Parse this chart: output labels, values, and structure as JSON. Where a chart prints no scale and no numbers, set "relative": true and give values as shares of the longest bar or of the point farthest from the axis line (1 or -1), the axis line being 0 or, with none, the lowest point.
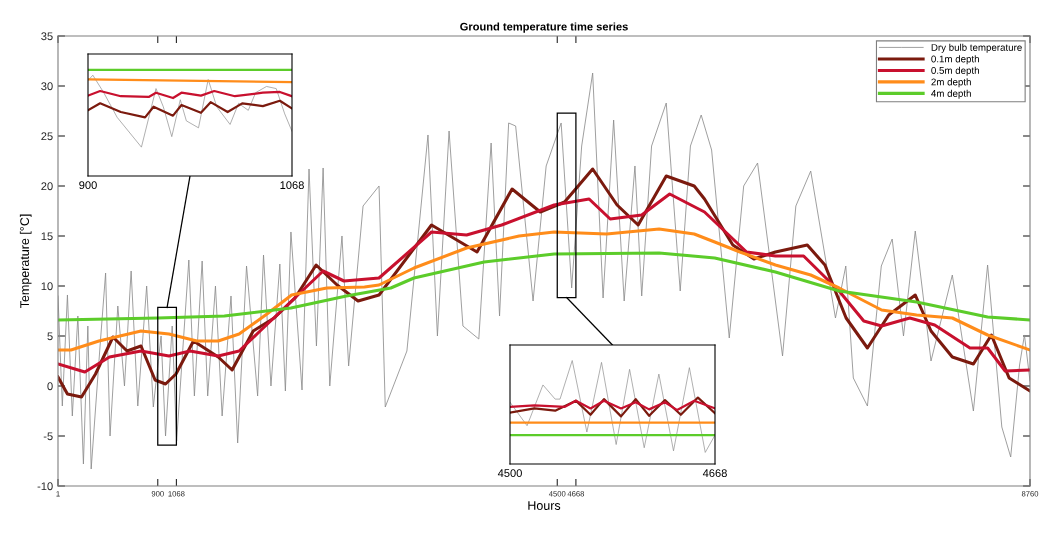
{
  "chart_data": [
    {
      "type": "line",
      "title": "Ground temperature time series",
      "xlabel": "Hours",
      "ylabel": "Temperature [°C]",
      "xlim": [
        1,
        8760
      ],
      "xticks": [
        1,
        900,
        1068,
        4500,
        4668,
        8760
      ],
      "ylim": [
        -10,
        35
      ],
      "yticks": [
        -10,
        -5,
        0,
        5,
        10,
        15,
        20,
        25,
        30,
        35
      ],
      "grid": false,
      "legend": "top right",
      "series": [
        {
          "name": "Dry bulb temperature",
          "color": "#8c8c8c",
          "x": [
            1,
            40,
            86,
            130,
            180,
            230,
            270,
            300,
            380,
            430,
            470,
            540,
            600,
            660,
            720,
            800,
            860,
            930,
            970,
            1030,
            1070,
            1180,
            1230,
            1300,
            1350,
            1420,
            1480,
            1560,
            1620,
            1700,
            1800,
            1853,
            1920,
            2000,
            2050,
            2100,
            2200,
            2263,
            2330,
            2390,
            2450,
            2560,
            2620,
            2750,
            2894,
            2950,
            3145,
            3335,
            3420,
            3525,
            3650,
            3793,
            3904,
            3980,
            4062,
            4125,
            4282,
            4400,
            4535,
            4630,
            4720,
            4819,
            4913,
            5008,
            5103,
            5200,
            5261,
            5350,
            5482,
            5608,
            5700,
            5797,
            5891,
            6050,
            6180,
            6305,
            6530,
            6650,
            6784,
            7007,
            7100,
            7168,
            7295,
            7420,
            7518,
            7620,
            7726,
            7868,
            8060,
            8250,
            8378,
            8506,
            8586,
            8666,
            8710,
            8760
          ],
          "values": [
            9,
            -2,
            9.1,
            -3,
            7,
            -7.8,
            6,
            -8.3,
            4,
            11.3,
            -5,
            8,
            0,
            11.5,
            -2,
            10,
            -2.1,
            5,
            -5,
            6,
            -5.5,
            12.6,
            -1,
            12.5,
            -1,
            10,
            -3,
            9,
            -5.7,
            12,
            -1,
            13.1,
            0,
            12.2,
            -0.5,
            15.4,
            -0.4,
            21.7,
            4,
            21.8,
            0,
            15,
            2,
            18,
            20,
            -2.1,
            3.5,
            25.1,
            5,
            25.5,
            6,
            4.7,
            24.3,
            7,
            26.3,
            26,
            8.5,
            22,
            26.3,
            9.8,
            24,
            31.3,
            8.8,
            26.6,
            8.5,
            22,
            9,
            24,
            28.3,
            9.5,
            24,
            27.1,
            23.6,
            4.8,
            20,
            22.3,
            3,
            18,
            21.5,
            6.8,
            12,
            0.8,
            -2,
            12,
            14.7,
            5,
            15.5,
            2.5,
            11.1,
            -2.5,
            12.1,
            -4.1,
            -7.1,
            2.1,
            5.1,
            0.5
          ]
        },
        {
          "name": "0.1m depth",
          "color": "#7b1a0e",
          "x": [
            1,
            86,
            213,
            339,
            496,
            623,
            749,
            876,
            970,
            1064,
            1222,
            1445,
            1570,
            1760,
            1949,
            2137,
            2327,
            2516,
            2705,
            2894,
            3367,
            3777,
            4093,
            4347,
            4566,
            4819,
            5039,
            5229,
            5482,
            5734,
            5827,
            6082,
            6272,
            6466,
            6753,
            6912,
            7103,
            7295,
            7487,
            7726,
            7868,
            8060,
            8250,
            8412,
            8572,
            8760
          ],
          "values": [
            0.9,
            -0.8,
            -1.1,
            1.2,
            4.9,
            3.5,
            4.0,
            0.6,
            0.2,
            1.2,
            4.5,
            2.9,
            1.6,
            5.5,
            6.8,
            8.8,
            12.1,
            10.1,
            8.5,
            9.1,
            16.1,
            13.4,
            19.7,
            17.4,
            18.4,
            21.7,
            18.1,
            16.1,
            21.0,
            20.0,
            18.7,
            14.1,
            12.7,
            13.4,
            14.1,
            12.1,
            6.8,
            3.8,
            7.1,
            9.1,
            5.5,
            2.9,
            2.2,
            5.1,
            0.8,
            -0.5
          ]
        },
        {
          "name": "0.5m depth",
          "color": "#c8102e",
          "x": [
            1,
            243,
            465,
            749,
            1001,
            1191,
            1445,
            1633,
            1822,
            2012,
            2200,
            2390,
            2578,
            2894,
            3367,
            3683,
            3999,
            4472,
            4787,
            4977,
            5261,
            5513,
            5827,
            6017,
            6206,
            6466,
            6720,
            7040,
            7262,
            7423,
            7677,
            7901,
            8219,
            8378,
            8536,
            8760
          ],
          "values": [
            2.2,
            1.4,
            2.9,
            3.5,
            3.0,
            3.5,
            3.0,
            3.5,
            5.5,
            7.5,
            9.5,
            11.5,
            10.5,
            10.8,
            15.4,
            15.1,
            16.1,
            18.1,
            18.7,
            16.7,
            17.1,
            19.2,
            17.4,
            15.4,
            13.4,
            13.0,
            13.0,
            9.5,
            6.5,
            6.0,
            6.8,
            6.1,
            3.8,
            3.8,
            1.5,
            1.6
          ]
        },
        {
          "name": "2m depth",
          "color": "#ff8c1a",
          "x": [
            1,
            118,
            370,
            749,
            1001,
            1253,
            1445,
            1633,
            1884,
            2106,
            2423,
            2763,
            2894,
            3209,
            3683,
            4156,
            4472,
            4945,
            5418,
            5734,
            5919,
            6146,
            6466,
            6784,
            7040,
            7423,
            7738,
            8060,
            8378,
            8760
          ],
          "values": [
            3.6,
            3.6,
            4.5,
            5.5,
            5.2,
            4.5,
            4.5,
            5.2,
            7.2,
            9.1,
            9.8,
            9.9,
            10.1,
            11.8,
            13.8,
            15.0,
            15.4,
            15.2,
            15.7,
            15.2,
            14.4,
            13.4,
            12.1,
            11.1,
            9.8,
            7.6,
            7.1,
            6.8,
            5.1,
            3.6
          ]
        },
        {
          "name": "4m depth",
          "color": "#5ccc2a",
          "x": [
            1,
            900,
            1500,
            2100,
            2600,
            3000,
            3209,
            3841,
            4472,
            5418,
            5919,
            6466,
            7040,
            7738,
            8378,
            8760
          ],
          "values": [
            6.6,
            6.8,
            7.0,
            7.8,
            9.0,
            9.8,
            10.8,
            12.4,
            13.2,
            13.3,
            12.8,
            11.4,
            9.5,
            8.4,
            6.9,
            6.6
          ]
        }
      ]
    },
    {
      "type": "line",
      "xlim": [
        900,
        1068
      ],
      "xticks": [
        900,
        1068
      ],
      "relative": true,
      "tick_labels": "x",
      "grid": false,
      "series": [
        {
          "color": "#8c8c8c",
          "x": [
            900,
            904,
            913,
            924,
            944,
            953,
            956,
            962,
            969,
            976,
            981,
            991,
            999,
            1006,
            1017,
            1024,
            1032,
            1038,
            1047,
            1055,
            1062,
            1068
          ],
          "values": [
            0.901,
            0.95,
            0.785,
            0.553,
            0.272,
            0.685,
            0.824,
            0.653,
            0.371,
            0.719,
            0.52,
            0.454,
            0.91,
            0.653,
            0.486,
            0.685,
            0.619,
            0.785,
            0.844,
            0.824,
            0.586,
            0.421
          ]
        },
        {
          "color": "#7b1a0e",
          "x": [
            900,
            910,
            927,
            947,
            954,
            970,
            977,
            993,
            1001,
            1015,
            1027,
            1044,
            1058,
            1068
          ],
          "values": [
            0.619,
            0.685,
            0.603,
            0.553,
            0.653,
            0.569,
            0.669,
            0.596,
            0.696,
            0.603,
            0.685,
            0.659,
            0.709,
            0.636
          ]
        },
        {
          "color": "#c8102e",
          "x": [
            900,
            910,
            927,
            950,
            956,
            970,
            977,
            993,
            1004,
            1021,
            1044,
            1058,
            1068
          ],
          "values": [
            0.758,
            0.801,
            0.752,
            0.745,
            0.785,
            0.735,
            0.785,
            0.758,
            0.801,
            0.752,
            0.785,
            0.792,
            0.752
          ]
        },
        {
          "color": "#ff8c1a",
          "x": [
            900,
            1068
          ],
          "values": [
            0.91,
            0.884
          ]
        },
        {
          "color": "#5ccc2a",
          "x": [
            900,
            1068
          ],
          "values": [
            1.0,
            1.0
          ]
        }
      ]
    },
    {
      "type": "line",
      "xlim": [
        4500,
        4668
      ],
      "xticks": [
        4500,
        4668
      ],
      "relative": true,
      "tick_labels": "x",
      "grid": false,
      "series": [
        {
          "color": "#8c8c8c",
          "x": [
            4500,
            4514,
            4527,
            4537,
            4541,
            4551,
            4563,
            4575,
            4587,
            4598,
            4610,
            4622,
            4634,
            4647,
            4660,
            4668
          ],
          "values": [
            0.597,
            0.37,
            0.764,
            0.627,
            0.627,
            1.0,
            0.309,
            0.982,
            0.188,
            0.915,
            0.157,
            0.869,
            0.127,
            0.931,
            0.112,
            0.279
          ]
        },
        {
          "color": "#7b1a0e",
          "x": [
            4500,
            4520,
            4537,
            4554,
            4566,
            4577,
            4591,
            4603,
            4614,
            4627,
            4640,
            4654,
            4668
          ],
          "values": [
            0.497,
            0.537,
            0.515,
            0.612,
            0.476,
            0.627,
            0.46,
            0.627,
            0.466,
            0.618,
            0.476,
            0.642,
            0.491
          ]
        },
        {
          "color": "#c8102e",
          "x": [
            4500,
            4520,
            4545,
            4554,
            4566,
            4577,
            4591,
            4603,
            4614,
            4627,
            4637,
            4651,
            4668
          ],
          "values": [
            0.552,
            0.567,
            0.552,
            0.612,
            0.537,
            0.612,
            0.537,
            0.597,
            0.528,
            0.597,
            0.521,
            0.612,
            0.537
          ]
        },
        {
          "color": "#ff8c1a",
          "x": [
            4500,
            4668
          ],
          "values": [
            0.4,
            0.4
          ]
        },
        {
          "color": "#5ccc2a",
          "x": [
            4500,
            4668
          ],
          "values": [
            0.279,
            0.279
          ]
        }
      ]
    }
  ]
}
